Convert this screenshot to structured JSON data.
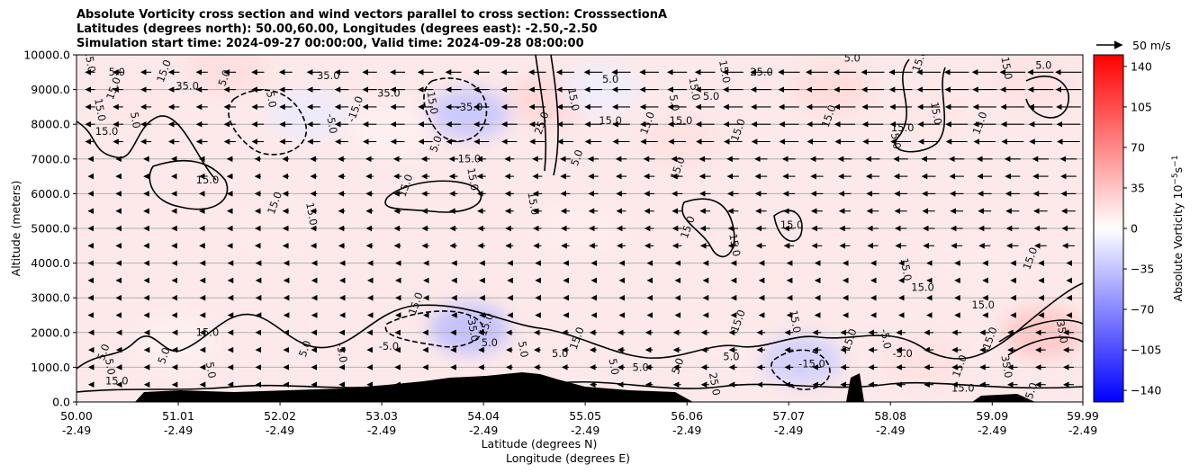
{
  "chart_data": {
    "type": "heatmap",
    "title_lines": [
      "Absolute Vorticity cross section and wind vectors parallel to cross section: CrosssectionA",
      "Latitudes (degrees north): 50.00,60.00, Longitudes (degrees east): -2.50,-2.50",
      "Simulation start time: 2024-09-27 00:00:00, Valid time: 2024-09-28 08:00:00"
    ],
    "xlabel_lines": [
      "Latitude (degrees N)",
      "Longitude (degrees E)"
    ],
    "ylabel": "Altitude (meters)",
    "x_ticks": [
      {
        "lat": "50.00",
        "lon": "-2.49"
      },
      {
        "lat": "51.01",
        "lon": "-2.49"
      },
      {
        "lat": "52.02",
        "lon": "-2.49"
      },
      {
        "lat": "53.03",
        "lon": "-2.49"
      },
      {
        "lat": "54.04",
        "lon": "-2.49"
      },
      {
        "lat": "55.05",
        "lon": "-2.49"
      },
      {
        "lat": "56.06",
        "lon": "-2.49"
      },
      {
        "lat": "57.07",
        "lon": "-2.49"
      },
      {
        "lat": "58.08",
        "lon": "-2.49"
      },
      {
        "lat": "59.09",
        "lon": "-2.49"
      },
      {
        "lat": "59.99",
        "lon": "-2.49"
      }
    ],
    "xlim": [
      50.0,
      59.99
    ],
    "y_ticks": [
      "0.0",
      "1000.0",
      "2000.0",
      "3000.0",
      "4000.0",
      "5000.0",
      "6000.0",
      "7000.0",
      "8000.0",
      "9000.0",
      "10000.0"
    ],
    "ylim": [
      0,
      10000
    ],
    "grid": "horizontal",
    "colorbar": {
      "label": "Absolute Vorticity 10^-5 s^-1",
      "range": [
        -150,
        150
      ],
      "ticks": [
        "140",
        "105",
        "70",
        "35",
        "0",
        "−35",
        "−70",
        "−105",
        "−140"
      ],
      "colormap": "bwr",
      "colors": {
        "low": "#0000ff",
        "mid": "#ffffff",
        "high": "#ff0000"
      }
    },
    "contour_levels": [
      "-35.0",
      "-15.0",
      "-5.0",
      "5.0",
      "15.0",
      "25.0",
      "35.0"
    ],
    "wind_key": "50 m/s",
    "wind_direction": "westward (toward lower latitude)",
    "blobs": [
      {
        "lat": 50.5,
        "alt": 8500,
        "value": 15
      },
      {
        "lat": 51.5,
        "alt": 9600,
        "value": 20
      },
      {
        "lat": 52.3,
        "alt": 8300,
        "value": -12
      },
      {
        "lat": 53.1,
        "alt": 7800,
        "value": 8
      },
      {
        "lat": 53.9,
        "alt": 8300,
        "value": -35
      },
      {
        "lat": 54.7,
        "alt": 8700,
        "value": 25
      },
      {
        "lat": 55.2,
        "alt": 9000,
        "value": -10
      },
      {
        "lat": 56.0,
        "alt": 7500,
        "value": 18
      },
      {
        "lat": 57.5,
        "alt": 9000,
        "value": 22
      },
      {
        "lat": 58.5,
        "alt": 8500,
        "value": 15
      },
      {
        "lat": 59.5,
        "alt": 9200,
        "value": 18
      },
      {
        "lat": 52.0,
        "alt": 5000,
        "value": 12
      },
      {
        "lat": 55.0,
        "alt": 5000,
        "value": 10
      },
      {
        "lat": 57.0,
        "alt": 4000,
        "value": 14
      },
      {
        "lat": 59.0,
        "alt": 4000,
        "value": 12
      },
      {
        "lat": 53.9,
        "alt": 2100,
        "value": -40
      },
      {
        "lat": 57.2,
        "alt": 1200,
        "value": -30
      },
      {
        "lat": 59.6,
        "alt": 2000,
        "value": 35
      },
      {
        "lat": 51.0,
        "alt": 1700,
        "value": 8
      },
      {
        "lat": 56.4,
        "alt": 1500,
        "value": 12
      },
      {
        "lat": 58.4,
        "alt": 1200,
        "value": 18
      }
    ],
    "contour_labels": [
      {
        "lat": 50.1,
        "alt": 9800,
        "text": "15.0"
      },
      {
        "lat": 50.4,
        "alt": 9400,
        "text": "5.0"
      },
      {
        "lat": 50.4,
        "alt": 9000,
        "text": "15.0"
      },
      {
        "lat": 50.2,
        "alt": 8400,
        "text": "15.0"
      },
      {
        "lat": 50.3,
        "alt": 7700,
        "text": "15.0"
      },
      {
        "lat": 50.9,
        "alt": 9500,
        "text": "15.0"
      },
      {
        "lat": 50.55,
        "alt": 8100,
        "text": "5.0"
      },
      {
        "lat": 51.1,
        "alt": 9000,
        "text": "35.0"
      },
      {
        "lat": 51.5,
        "alt": 9300,
        "text": "5.0"
      },
      {
        "lat": 51.9,
        "alt": 8700,
        "text": "5.0"
      },
      {
        "lat": 51.3,
        "alt": 6300,
        "text": "15.0"
      },
      {
        "lat": 52.0,
        "alt": 5700,
        "text": "15.0"
      },
      {
        "lat": 52.3,
        "alt": 5400,
        "text": "15.0"
      },
      {
        "lat": 52.5,
        "alt": 9300,
        "text": "35.0"
      },
      {
        "lat": 52.8,
        "alt": 8400,
        "text": "-15.0"
      },
      {
        "lat": 52.5,
        "alt": 8000,
        "text": "-5.0"
      },
      {
        "lat": 53.1,
        "alt": 8800,
        "text": "35.0"
      },
      {
        "lat": 53.3,
        "alt": 6200,
        "text": "15.0"
      },
      {
        "lat": 53.5,
        "alt": 8600,
        "text": "15.0"
      },
      {
        "lat": 53.9,
        "alt": 8400,
        "text": "-35.0"
      },
      {
        "lat": 53.6,
        "alt": 7400,
        "text": "5.0"
      },
      {
        "lat": 53.9,
        "alt": 6400,
        "text": "15.0"
      },
      {
        "lat": 53.9,
        "alt": 6900,
        "text": "15.0"
      },
      {
        "lat": 54.65,
        "alt": 8000,
        "text": "25.0"
      },
      {
        "lat": 54.9,
        "alt": 8700,
        "text": "15.0"
      },
      {
        "lat": 55.3,
        "alt": 9200,
        "text": "5.0"
      },
      {
        "lat": 55.0,
        "alt": 7000,
        "text": "5.0"
      },
      {
        "lat": 54.5,
        "alt": 5700,
        "text": "15.0"
      },
      {
        "lat": 55.3,
        "alt": 8000,
        "text": "15.0"
      },
      {
        "lat": 55.7,
        "alt": 8000,
        "text": "15.0"
      },
      {
        "lat": 55.9,
        "alt": 8600,
        "text": "5.0"
      },
      {
        "lat": 56.0,
        "alt": 8000,
        "text": "15.0"
      },
      {
        "lat": 56.0,
        "alt": 6700,
        "text": "15.0"
      },
      {
        "lat": 56.1,
        "alt": 9000,
        "text": "15.0"
      },
      {
        "lat": 56.3,
        "alt": 8700,
        "text": "5.0"
      },
      {
        "lat": 56.6,
        "alt": 7800,
        "text": "15.0"
      },
      {
        "lat": 56.4,
        "alt": 9500,
        "text": "15.0"
      },
      {
        "lat": 56.8,
        "alt": 9400,
        "text": "25.0"
      },
      {
        "lat": 56.1,
        "alt": 5000,
        "text": "15.0"
      },
      {
        "lat": 56.5,
        "alt": 4500,
        "text": "15.0"
      },
      {
        "lat": 57.1,
        "alt": 5000,
        "text": "15.0"
      },
      {
        "lat": 57.5,
        "alt": 8200,
        "text": "15.0"
      },
      {
        "lat": 58.1,
        "alt": 7500,
        "text": "5.0"
      },
      {
        "lat": 57.7,
        "alt": 9800,
        "text": "5.0"
      },
      {
        "lat": 58.4,
        "alt": 9800,
        "text": "15.0"
      },
      {
        "lat": 58.5,
        "alt": 8300,
        "text": "15.0"
      },
      {
        "lat": 58.2,
        "alt": 7800,
        "text": "15.0"
      },
      {
        "lat": 59.0,
        "alt": 8000,
        "text": "15.0"
      },
      {
        "lat": 59.2,
        "alt": 9600,
        "text": "15.0"
      },
      {
        "lat": 59.6,
        "alt": 9600,
        "text": "5.0"
      },
      {
        "lat": 59.5,
        "alt": 4100,
        "text": "15.0"
      },
      {
        "lat": 58.2,
        "alt": 3800,
        "text": "15.0"
      },
      {
        "lat": 58.4,
        "alt": 3200,
        "text": "15.0"
      },
      {
        "lat": 50.3,
        "alt": 1400,
        "text": "5.0"
      },
      {
        "lat": 50.3,
        "alt": 1000,
        "text": "5.0"
      },
      {
        "lat": 50.4,
        "alt": 500,
        "text": "15.0"
      },
      {
        "lat": 50.9,
        "alt": 1300,
        "text": "5.0"
      },
      {
        "lat": 51.3,
        "alt": 900,
        "text": "5.0"
      },
      {
        "lat": 51.3,
        "alt": 1900,
        "text": "15.0"
      },
      {
        "lat": 52.3,
        "alt": 1500,
        "text": "5.0"
      },
      {
        "lat": 52.6,
        "alt": 1400,
        "text": "-5.0"
      },
      {
        "lat": 53.1,
        "alt": 1500,
        "text": "-5.0"
      },
      {
        "lat": 53.4,
        "alt": 2800,
        "text": "15.0"
      },
      {
        "lat": 53.9,
        "alt": 2100,
        "text": "-35.0"
      },
      {
        "lat": 54.1,
        "alt": 1600,
        "text": "5.0"
      },
      {
        "lat": 54.1,
        "alt": 2200,
        "text": "15.0"
      },
      {
        "lat": 54.4,
        "alt": 1500,
        "text": "5.0"
      },
      {
        "lat": 54.8,
        "alt": 1300,
        "text": "5.0"
      },
      {
        "lat": 55.0,
        "alt": 1800,
        "text": "15.0"
      },
      {
        "lat": 55.3,
        "alt": 1000,
        "text": "5.0"
      },
      {
        "lat": 55.6,
        "alt": 900,
        "text": "5.0"
      },
      {
        "lat": 56.0,
        "alt": 1000,
        "text": "5.0"
      },
      {
        "lat": 56.3,
        "alt": 500,
        "text": "25.0"
      },
      {
        "lat": 56.5,
        "alt": 1200,
        "text": "5.0"
      },
      {
        "lat": 56.6,
        "alt": 2300,
        "text": "15.0"
      },
      {
        "lat": 57.1,
        "alt": 2300,
        "text": "15.0"
      },
      {
        "lat": 57.3,
        "alt": 1000,
        "text": "-15.0"
      },
      {
        "lat": 57.7,
        "alt": 1700,
        "text": "-15.0"
      },
      {
        "lat": 58.0,
        "alt": 1800,
        "text": "-5.0"
      },
      {
        "lat": 58.2,
        "alt": 1300,
        "text": "-5.0"
      },
      {
        "lat": 58.8,
        "alt": 1000,
        "text": "15.0"
      },
      {
        "lat": 59.2,
        "alt": 1000,
        "text": "35.0"
      },
      {
        "lat": 59.0,
        "alt": 2700,
        "text": "15.0"
      },
      {
        "lat": 59.1,
        "alt": 1800,
        "text": "15.0"
      },
      {
        "lat": 59.75,
        "alt": 2000,
        "text": "35.0"
      },
      {
        "lat": 58.8,
        "alt": 300,
        "text": "15.0"
      },
      {
        "lat": 59.5,
        "alt": 200,
        "text": "35.0"
      }
    ]
  }
}
